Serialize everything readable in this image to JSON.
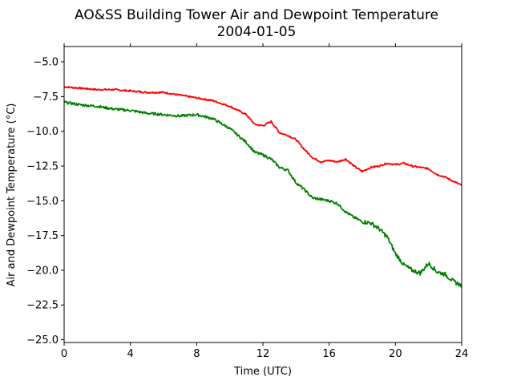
{
  "chart_data": {
    "type": "line",
    "title": "AO&SS Building Tower Air and Dewpoint Temperature",
    "subtitle": "2004-01-05",
    "xlabel": "Time (UTC)",
    "ylabel": "Air and Dewpoint Temperature (°C)",
    "xlim": [
      0,
      24
    ],
    "ylim": [
      -25.2,
      -3.9
    ],
    "xticks": [
      0,
      4,
      8,
      12,
      16,
      20,
      24
    ],
    "yticks": [
      -25.0,
      -22.5,
      -20.0,
      -17.5,
      -15.0,
      -12.5,
      -10.0,
      -7.5,
      -5.0
    ],
    "grid": false,
    "series": [
      {
        "color": "#ff0000",
        "x": [
          0,
          1,
          2,
          3,
          4,
          5,
          6,
          7,
          8,
          9,
          10,
          11,
          11.5,
          12,
          12.5,
          13,
          13.5,
          14,
          14.5,
          15,
          15.5,
          16,
          16.5,
          17,
          17.5,
          18,
          18.5,
          19,
          19.5,
          20,
          20.5,
          21,
          21.5,
          22,
          22.5,
          23,
          23.5,
          24
        ],
        "y": [
          -6.8,
          -6.9,
          -7.0,
          -7.0,
          -7.1,
          -7.2,
          -7.2,
          -7.4,
          -7.6,
          -7.8,
          -8.2,
          -8.8,
          -9.5,
          -9.6,
          -9.3,
          -10.1,
          -10.3,
          -10.6,
          -11.3,
          -11.9,
          -12.2,
          -12.1,
          -12.2,
          -12.0,
          -12.5,
          -12.9,
          -12.6,
          -12.5,
          -12.3,
          -12.4,
          -12.3,
          -12.5,
          -12.6,
          -12.7,
          -13.1,
          -13.3,
          -13.6,
          -13.9
        ]
      },
      {
        "color": "#008000",
        "x": [
          0,
          1,
          2,
          3,
          4,
          5,
          6,
          7,
          8,
          9,
          10,
          11,
          11.5,
          12,
          12.5,
          13,
          13.5,
          14,
          14.5,
          15,
          15.5,
          16,
          16.5,
          17,
          17.5,
          18,
          18.5,
          19,
          19.5,
          20,
          20.5,
          21,
          21.5,
          22,
          22.5,
          23,
          23.5,
          24
        ],
        "y": [
          -7.9,
          -8.1,
          -8.2,
          -8.4,
          -8.5,
          -8.7,
          -8.8,
          -8.9,
          -8.8,
          -9.1,
          -9.8,
          -10.8,
          -11.5,
          -11.7,
          -12.0,
          -12.6,
          -12.8,
          -13.7,
          -14.2,
          -14.8,
          -14.9,
          -15.0,
          -15.2,
          -15.8,
          -16.2,
          -16.5,
          -16.6,
          -17.0,
          -17.6,
          -18.8,
          -19.6,
          -20.0,
          -20.2,
          -19.5,
          -20.1,
          -20.3,
          -20.8,
          -21.1
        ]
      }
    ]
  }
}
